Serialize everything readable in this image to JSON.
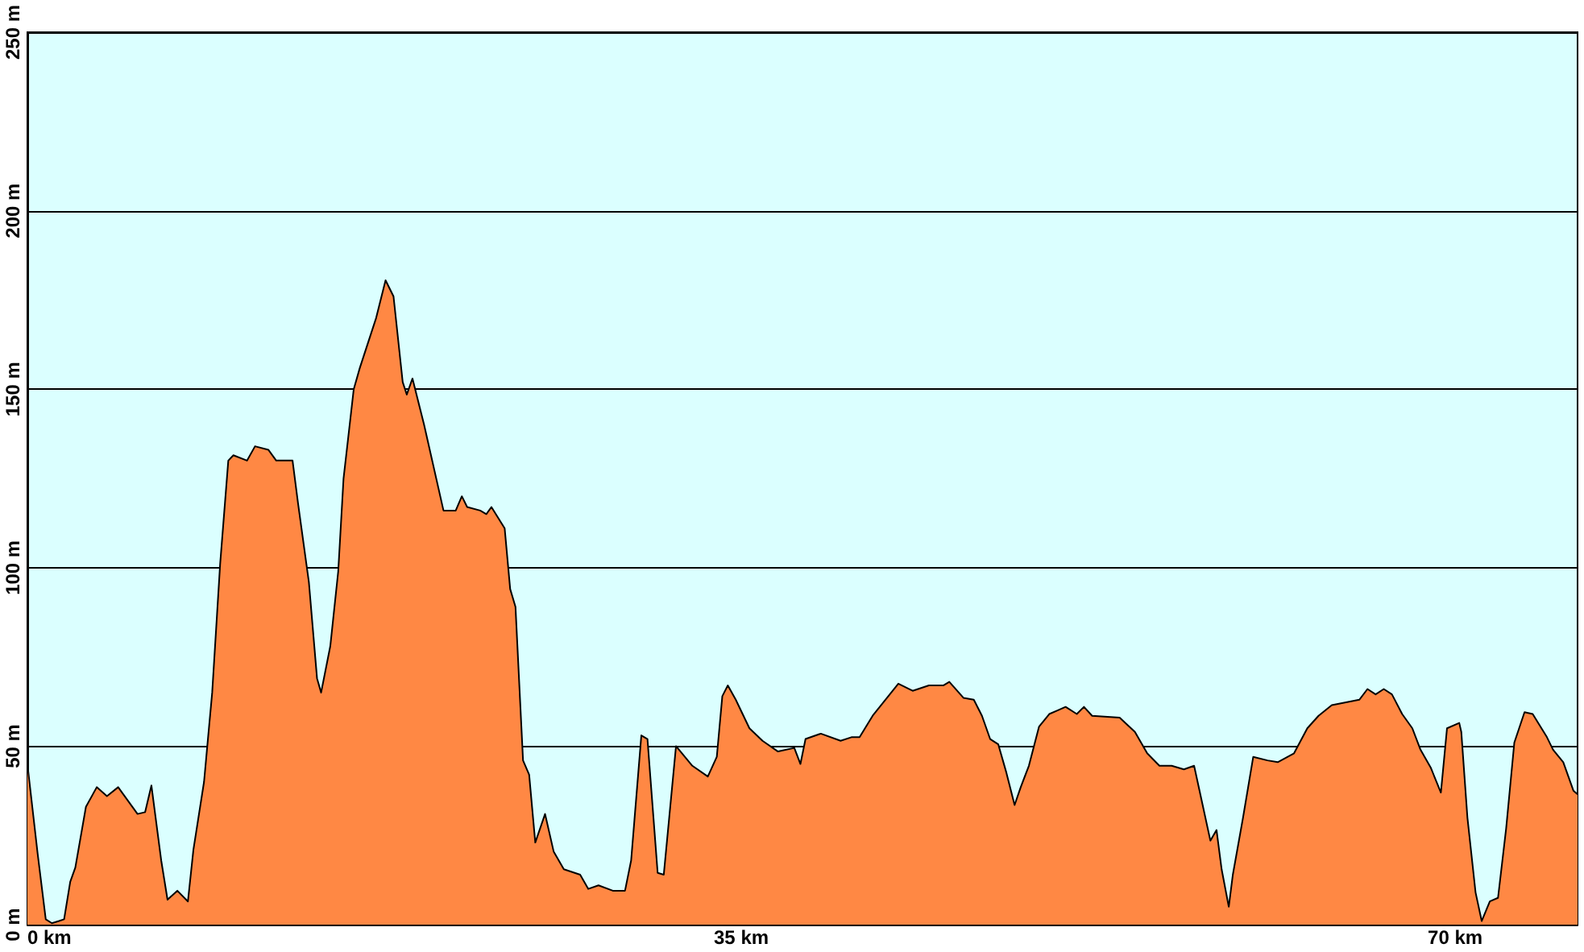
{
  "chart_data": {
    "type": "area",
    "x": [
      0,
      0.5,
      0.9,
      1.2,
      1.55,
      1.8,
      2.1,
      2.35,
      2.87,
      3.4,
      3.9,
      4.45,
      5.4,
      5.77,
      6.08,
      6.56,
      6.87,
      7.35,
      7.87,
      8.14,
      8.66,
      9.06,
      9.45,
      9.85,
      10.1,
      10.77,
      11.16,
      11.82,
      12.2,
      13.0,
      13.27,
      13.8,
      14.2,
      14.4,
      14.85,
      15.24,
      15.5,
      16.0,
      16.3,
      17.1,
      17.56,
      17.95,
      18.4,
      18.6,
      18.88,
      19.45,
      20.4,
      21.0,
      21.3,
      21.56,
      22.2,
      22.5,
      22.75,
      23.4,
      23.67,
      23.93,
      24.3,
      24.6,
      24.9,
      25.38,
      25.8,
      26.3,
      27.1,
      27.5,
      28.0,
      28.7,
      29.3,
      29.6,
      30.1,
      30.4,
      30.9,
      31.2,
      31.8,
      32.6,
      33.36,
      33.8,
      34.07,
      34.34,
      34.73,
      35.4,
      36.04,
      36.8,
      37.6,
      37.9,
      38.15,
      38.9,
      39.87,
      40.4,
      40.8,
      41.44,
      42.7,
      43.4,
      44.2,
      44.9,
      45.2,
      45.9,
      46.4,
      46.8,
      47.2,
      47.6,
      48.0,
      48.4,
      48.7,
      49.1,
      49.6,
      50.1,
      50.5,
      50.9,
      51.45,
      51.8,
      52.2,
      53.55,
      54.3,
      54.9,
      55.5,
      56.1,
      56.7,
      57.2,
      57.6,
      58.0,
      58.3,
      58.55,
      58.9,
      59.1,
      59.6,
      60.1,
      60.8,
      61.3,
      62.1,
      62.75,
      63.3,
      63.95,
      65.3,
      65.7,
      66.1,
      66.5,
      66.9,
      67.4,
      67.9,
      68.3,
      68.8,
      69.3,
      69.6,
      70.2,
      70.3,
      70.6,
      71.0,
      71.3,
      71.7,
      72.1,
      72.5,
      72.9,
      73.4,
      73.8,
      74.5,
      74.8,
      75.3,
      75.8,
      76.0
    ],
    "series": [
      {
        "color": "#ff8844",
        "values": [
          45,
          20,
          1.5,
          0.4,
          1,
          1.5,
          12,
          16,
          33,
          38.5,
          36,
          38.5,
          31,
          31.5,
          39,
          18,
          7,
          9.5,
          6.5,
          21,
          40,
          65,
          101,
          130,
          131.5,
          130,
          134,
          133,
          130,
          130,
          118,
          96,
          69,
          65,
          78,
          99,
          125,
          150,
          156,
          170,
          180.5,
          176,
          152,
          148.5,
          153,
          140,
          116,
          116,
          120,
          117,
          116,
          115,
          117,
          111,
          94,
          89,
          46,
          42,
          23,
          31,
          20.5,
          15.5,
          14,
          10,
          11,
          9.5,
          9.5,
          18,
          53,
          52,
          14.5,
          14,
          50,
          44.5,
          41.5,
          47,
          64,
          67,
          63,
          55,
          51.5,
          48.5,
          49.5,
          45,
          52,
          53.5,
          51.5,
          52.5,
          52.5,
          58.5,
          67.5,
          65.5,
          67,
          67,
          68,
          63.5,
          63,
          58.5,
          52,
          50.5,
          42.5,
          33.5,
          38.5,
          44.5,
          55.5,
          59,
          60,
          61,
          59,
          61,
          58.5,
          58,
          54,
          48,
          44.5,
          44.5,
          43.5,
          44.5,
          34,
          23.5,
          26.5,
          15.5,
          5,
          14,
          30,
          47,
          46,
          45.5,
          48,
          55,
          58.5,
          61.5,
          63,
          66,
          64.5,
          66,
          64.5,
          59,
          55,
          49,
          44,
          37,
          55,
          56.5,
          54,
          30,
          9,
          1,
          6.5,
          7.5,
          27,
          51,
          59.5,
          59,
          52.5,
          49,
          45.5,
          37.5,
          36.5
        ]
      }
    ],
    "xlim": [
      0,
      76
    ],
    "xticks": [
      {
        "value": 0,
        "label": "0 km"
      },
      {
        "value": 35,
        "label": "35 km"
      },
      {
        "value": 70,
        "label": "70 km"
      }
    ],
    "ylim": [
      0,
      250
    ],
    "yticks": [
      {
        "value": 0,
        "label": "0 m"
      },
      {
        "value": 50,
        "label": "50 m"
      },
      {
        "value": 100,
        "label": "100 m"
      },
      {
        "value": 150,
        "label": "150 m"
      },
      {
        "value": 200,
        "label": "200 m"
      },
      {
        "value": 250,
        "label": "250 m"
      }
    ],
    "grid": "y",
    "marker": "none",
    "line_style": "solid"
  }
}
